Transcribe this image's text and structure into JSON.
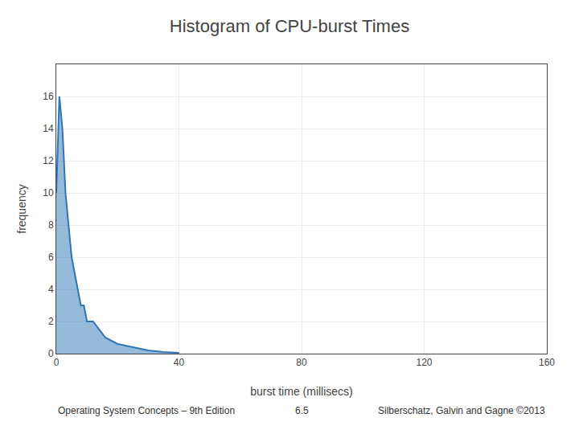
{
  "chart_data": {
    "type": "area",
    "title": "Histogram of CPU-burst Times",
    "x_label": "burst time (millisecs)",
    "y_label": "frequency",
    "x": [
      0,
      1,
      2,
      3,
      4,
      5,
      6,
      7,
      8,
      9,
      10,
      12,
      14,
      16,
      18,
      20,
      25,
      30,
      35,
      40
    ],
    "values": [
      10,
      16,
      14,
      10,
      8,
      6,
      5,
      4,
      3,
      3,
      2,
      2,
      1.5,
      1,
      0.8,
      0.6,
      0.4,
      0.2,
      0.1,
      0.05
    ],
    "color": "#2E75B6",
    "xlim": [
      0,
      160
    ],
    "xticks": [
      0,
      40,
      80,
      120,
      160
    ],
    "ylim": [
      0,
      18
    ],
    "yticks": [
      0,
      2,
      4,
      6,
      8,
      10,
      12,
      14,
      16
    ],
    "grid": true,
    "annotations": [
      "Operating System Concepts – 9th Edition",
      "6.5",
      "Silberschatz, Galvin and Gagne ©2013"
    ]
  }
}
